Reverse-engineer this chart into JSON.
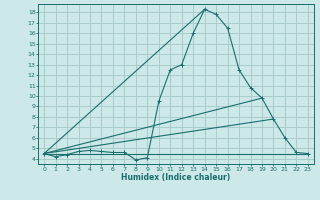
{
  "xlabel": "Humidex (Indice chaleur)",
  "ylabel": "",
  "background_color": "#cce8e8",
  "grid_color": "#aacccc",
  "line_color": "#1a6e6e",
  "xlim": [
    -0.5,
    23.5
  ],
  "ylim": [
    3.5,
    18.8
  ],
  "xticks": [
    0,
    1,
    2,
    3,
    4,
    5,
    6,
    7,
    8,
    9,
    10,
    11,
    12,
    13,
    14,
    15,
    16,
    17,
    18,
    19,
    20,
    21,
    22,
    23
  ],
  "yticks": [
    4,
    5,
    6,
    7,
    8,
    9,
    10,
    11,
    12,
    13,
    14,
    15,
    16,
    17,
    18
  ],
  "series1_x": [
    0,
    1,
    2,
    3,
    4,
    5,
    6,
    7,
    8,
    9,
    10,
    11,
    12,
    13,
    14,
    15,
    16,
    17,
    18,
    19,
    20,
    21,
    22,
    23
  ],
  "series1_y": [
    4.5,
    4.2,
    4.4,
    4.7,
    4.8,
    4.7,
    4.6,
    4.6,
    3.9,
    4.1,
    9.5,
    12.5,
    13.0,
    16.0,
    18.3,
    17.8,
    16.5,
    12.5,
    10.8,
    9.8,
    7.8,
    6.0,
    4.6,
    4.5
  ],
  "line2_x": [
    0,
    14
  ],
  "line2_y": [
    4.5,
    18.3
  ],
  "line3_x": [
    0,
    19
  ],
  "line3_y": [
    4.5,
    9.8
  ],
  "line4_x": [
    0,
    20
  ],
  "line4_y": [
    4.5,
    7.8
  ],
  "line5_x": [
    0,
    23
  ],
  "line5_y": [
    4.5,
    4.5
  ]
}
